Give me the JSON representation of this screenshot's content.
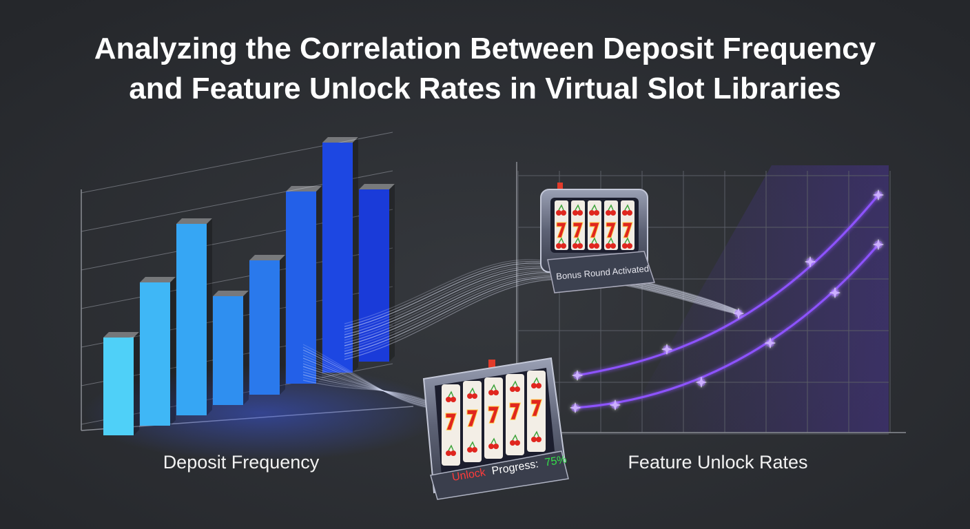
{
  "header": {
    "title_lines": [
      "Analyzing the Correlation Between Deposit Frequency",
      "and Feature Unlock Rates in Virtual Slot Libraries"
    ]
  },
  "labels": {
    "left": "Deposit Frequency",
    "right": "Feature Unlock Rates"
  },
  "machines": {
    "small": {
      "banner": "Bonus Round Activated"
    },
    "large": {
      "status": [
        "Unlock",
        "Progress:",
        "75%"
      ]
    }
  }
}
